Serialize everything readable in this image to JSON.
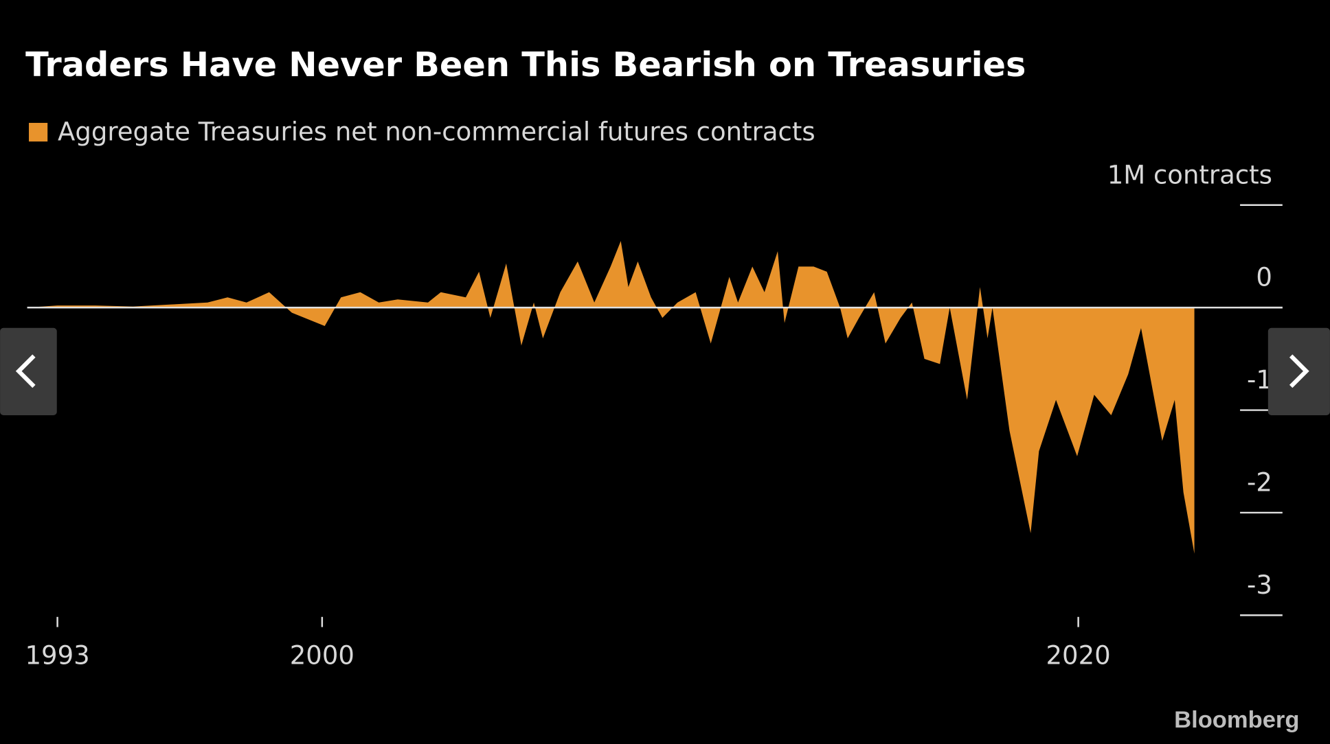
{
  "chart_data": {
    "type": "area",
    "title": "Traders Have Never Been This Bearish on Treasuries",
    "series": [
      {
        "name": "Aggregate Treasuries net non-commercial futures contracts",
        "color": "#e8932c",
        "x": [
          1992.2,
          1993,
          1994,
          1995,
          1996,
          1996.97,
          1997.5,
          1998,
          1998.6,
          1999.2,
          2000.07,
          2000.5,
          2001.01,
          2001.5,
          2002,
          2002.8,
          2003.14,
          2003.8,
          2004.15,
          2004.45,
          2004.87,
          2005.27,
          2005.6,
          2005.84,
          2006.3,
          2006.76,
          2007.2,
          2007.63,
          2007.9,
          2008.1,
          2008.35,
          2008.7,
          2009.0,
          2009.4,
          2009.88,
          2010.28,
          2010.77,
          2011.0,
          2011.38,
          2011.7,
          2012.05,
          2012.23,
          2012.6,
          2013.0,
          2013.35,
          2013.7,
          2013.9,
          2014.2,
          2014.6,
          2014.9,
          2015.3,
          2015.6,
          2015.93,
          2016.34,
          2016.6,
          2017.06,
          2017.4,
          2017.6,
          2017.73,
          2018.18,
          2018.74,
          2018.96,
          2019.41,
          2019.97,
          2020.42,
          2020.87,
          2021.32,
          2021.66,
          2021.99,
          2022.22,
          2022.55,
          2022.78,
          2023.07
        ],
        "values": [
          0,
          0.02,
          0.02,
          0.01,
          0.03,
          0.05,
          0.1,
          0.05,
          0.15,
          -0.05,
          -0.18,
          0.1,
          0.15,
          0.05,
          0.08,
          0.05,
          0.15,
          0.1,
          0.35,
          -0.1,
          0.43,
          -0.37,
          0.05,
          -0.3,
          0.15,
          0.45,
          0.05,
          0.4,
          0.65,
          0.2,
          0.45,
          0.1,
          -0.1,
          0.05,
          0.15,
          -0.35,
          0.3,
          0.05,
          0.4,
          0.15,
          0.55,
          -0.15,
          0.4,
          0.4,
          0.35,
          0,
          -0.3,
          -0.1,
          0.15,
          -0.35,
          -0.1,
          0.05,
          -0.5,
          -0.55,
          0,
          -0.9,
          0.2,
          -0.3,
          0,
          -1.2,
          -2.2,
          -1.4,
          -0.9,
          -1.45,
          -0.85,
          -1.05,
          -0.65,
          -0.2,
          -0.85,
          -1.3,
          -0.9,
          -1.8,
          -2.4
        ]
      }
    ],
    "xlim": [
      1992.2,
      2025.4
    ],
    "xticks": [
      1993,
      2000,
      2020
    ],
    "ylim": [
      -3,
      1
    ],
    "yticks": [
      {
        "value": 1,
        "label": "1M contracts"
      },
      0,
      -1,
      -2,
      -3
    ],
    "source": "Bloomberg"
  }
}
